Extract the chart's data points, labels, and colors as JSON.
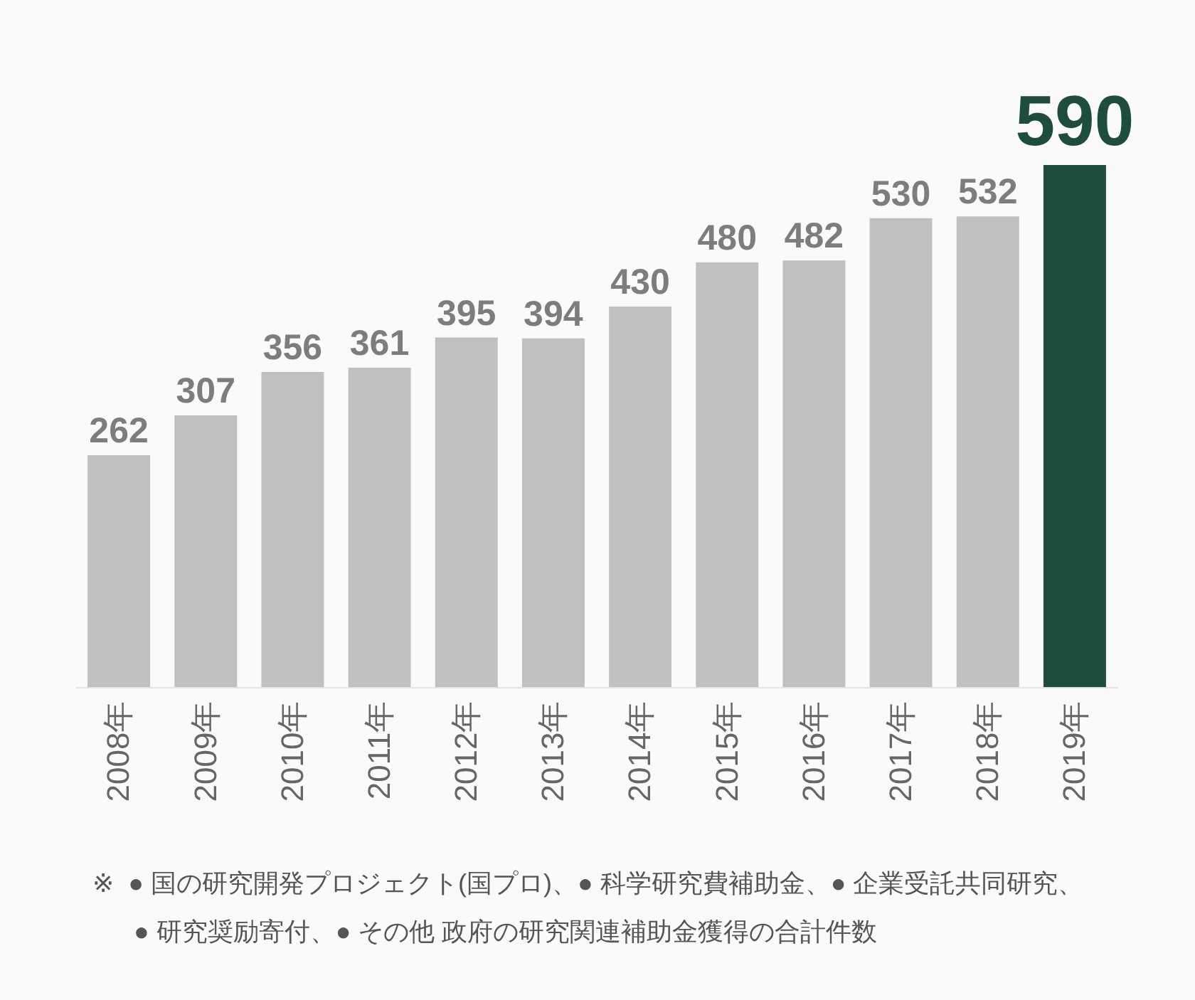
{
  "chart_data": {
    "type": "bar",
    "categories": [
      "2008年",
      "2009年",
      "2010年",
      "2011年",
      "2012年",
      "2013年",
      "2014年",
      "2015年",
      "2016年",
      "2017年",
      "2018年",
      "2019年"
    ],
    "values": [
      262,
      307,
      356,
      361,
      395,
      394,
      430,
      480,
      482,
      530,
      532,
      590
    ],
    "colors": [
      "#c0c0c0",
      "#c0c0c0",
      "#c0c0c0",
      "#c0c0c0",
      "#c0c0c0",
      "#c0c0c0",
      "#c0c0c0",
      "#c0c0c0",
      "#c0c0c0",
      "#c0c0c0",
      "#c0c0c0",
      "#1f4d3b"
    ],
    "data_labels": true,
    "annotations": [
      "※  ● 国の研究開発プロジェクト(国プロ)、● 科学研究費補助金、● 企業受託共同研究、",
      "● 研究奨励寄付、● その他 政府の研究関連補助金獲得の合計件数"
    ]
  }
}
